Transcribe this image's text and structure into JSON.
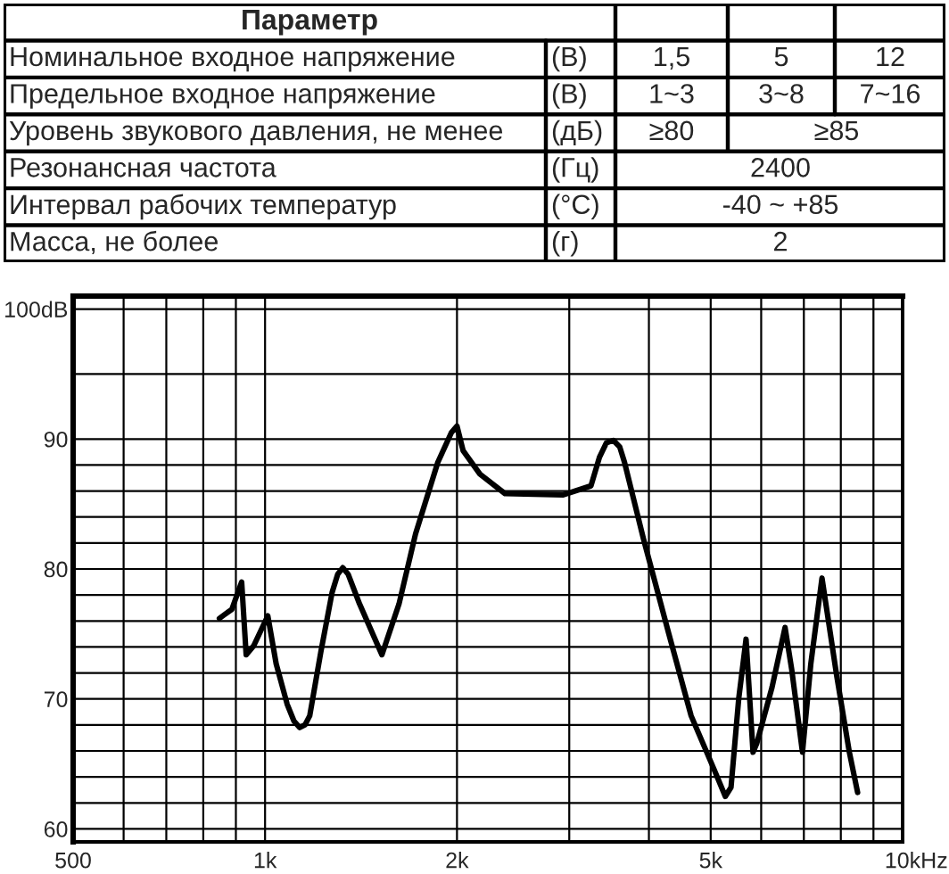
{
  "chart_data": [
    {
      "type": "other",
      "categories": [
        "Параметр",
        null,
        null,
        null
      ],
      "y_categories": [
        "Номинальное входное напряжение",
        "Предельное входное напряжение",
        "Уровень звукового давления, не менее",
        "Резонансная частота",
        "Интервал рабочих температур",
        "Масса, не более"
      ],
      "y2_categories": [
        "(В)",
        "(В)",
        "(дБ)",
        "(Гц)",
        "(°C)",
        "(г)"
      ],
      "cell_labels": [
        [
          "1,5",
          "5",
          "12"
        ],
        [
          "1~3",
          "3~8",
          "7~16"
        ],
        [
          "≥80",
          "≥85",
          null
        ],
        [
          "2400",
          null,
          null
        ],
        [
          "-40 ~ +85",
          null,
          null
        ],
        [
          "2",
          null,
          null
        ]
      ]
    },
    {
      "type": "line",
      "color": "#000000",
      "log": "x",
      "grid": true,
      "xlabel": "Hz",
      "x": [
        848,
        887,
        919,
        934,
        960,
        1010,
        1041,
        1083,
        1110,
        1133,
        1155,
        1175,
        1223,
        1274,
        1300,
        1324,
        1350,
        1407,
        1525,
        1622,
        1722,
        1866,
        1960,
        2000,
        2045,
        2173,
        2379,
        2936,
        3245,
        3346,
        3430,
        3518,
        3600,
        3663,
        3923,
        4299,
        4659,
        5059,
        5271,
        5381,
        5532,
        5681,
        5826,
        5907,
        6240,
        6540,
        6698,
        6965,
        7178,
        7474,
        7881,
        8250,
        8500
      ],
      "values": [
        76.2,
        76.9,
        79.0,
        73.4,
        74.1,
        76.4,
        72.7,
        69.6,
        68.3,
        67.8,
        68.0,
        68.7,
        73.6,
        78.2,
        79.6,
        80.1,
        79.6,
        77.3,
        73.4,
        77.3,
        82.7,
        88.2,
        90.5,
        91.0,
        89.1,
        87.3,
        85.8,
        85.7,
        86.4,
        88.6,
        89.7,
        89.9,
        89.4,
        88.2,
        82.3,
        75.0,
        68.7,
        64.6,
        62.5,
        63.2,
        70.0,
        74.6,
        65.9,
        66.6,
        70.9,
        75.5,
        72.3,
        65.9,
        72.7,
        79.3,
        71.8,
        65.9,
        62.8
      ],
      "xlim": [
        500,
        10000
      ],
      "ylim": [
        59,
        101
      ],
      "xticks": [
        500,
        {
          "value": 600,
          "label": null
        },
        {
          "value": 700,
          "label": null
        },
        {
          "value": 800,
          "label": null
        },
        {
          "value": 900,
          "label": null
        },
        {
          "value": 1000,
          "label": "1k"
        },
        {
          "value": 2000,
          "label": "2k"
        },
        {
          "value": 3000,
          "label": null
        },
        {
          "value": 4000,
          "label": null
        },
        {
          "value": 5000,
          "label": "5k"
        },
        {
          "value": 6000,
          "label": null
        },
        {
          "value": 7000,
          "label": null
        },
        {
          "value": 8000,
          "label": null
        },
        {
          "value": 9000,
          "label": null
        },
        {
          "value": 10000,
          "label": "10k"
        }
      ],
      "yticks": [
        60,
        {
          "value": 62,
          "label": null
        },
        {
          "value": 64,
          "label": null
        },
        {
          "value": 66,
          "label": null
        },
        {
          "value": 68,
          "label": null
        },
        70,
        {
          "value": 72,
          "label": null
        },
        {
          "value": 74,
          "label": null
        },
        {
          "value": 76,
          "label": null
        },
        {
          "value": 78,
          "label": null
        },
        80,
        {
          "value": 82,
          "label": null
        },
        {
          "value": 84,
          "label": null
        },
        {
          "value": 86,
          "label": null
        },
        {
          "value": 88,
          "label": null
        },
        90,
        {
          "value": 95,
          "label": null
        },
        {
          "value": 100,
          "label": "100dB"
        }
      ]
    }
  ]
}
